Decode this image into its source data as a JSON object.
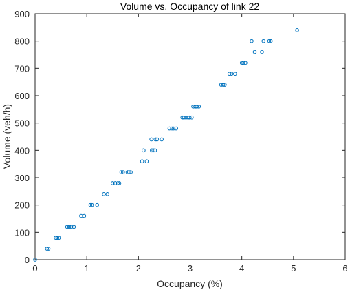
{
  "chart_data": {
    "type": "scatter",
    "title": "Volume vs. Occupancy of link 22",
    "xlabel": "Occupancy (%)",
    "ylabel": "Volume (veh/h)",
    "xlim": [
      0,
      6
    ],
    "ylim": [
      0,
      900
    ],
    "xticks": [
      0,
      1,
      2,
      3,
      4,
      5,
      6
    ],
    "yticks": [
      0,
      100,
      200,
      300,
      400,
      500,
      600,
      700,
      800,
      900
    ],
    "grid": false,
    "legend": "none",
    "marker_color": "#0072BD",
    "series": [
      {
        "points": [
          [
            0.0,
            0
          ],
          [
            0.23,
            40
          ],
          [
            0.26,
            40
          ],
          [
            0.4,
            80
          ],
          [
            0.43,
            80
          ],
          [
            0.46,
            80
          ],
          [
            0.62,
            120
          ],
          [
            0.66,
            120
          ],
          [
            0.7,
            120
          ],
          [
            0.75,
            120
          ],
          [
            0.89,
            160
          ],
          [
            0.95,
            160
          ],
          [
            1.07,
            200
          ],
          [
            1.1,
            200
          ],
          [
            1.2,
            200
          ],
          [
            1.33,
            240
          ],
          [
            1.4,
            240
          ],
          [
            1.5,
            280
          ],
          [
            1.55,
            280
          ],
          [
            1.6,
            280
          ],
          [
            1.63,
            280
          ],
          [
            1.67,
            320
          ],
          [
            1.7,
            320
          ],
          [
            1.79,
            320
          ],
          [
            1.82,
            320
          ],
          [
            1.85,
            320
          ],
          [
            2.07,
            360
          ],
          [
            2.16,
            360
          ],
          [
            2.1,
            400
          ],
          [
            2.26,
            400
          ],
          [
            2.29,
            400
          ],
          [
            2.32,
            400
          ],
          [
            2.25,
            440
          ],
          [
            2.33,
            440
          ],
          [
            2.36,
            440
          ],
          [
            2.45,
            440
          ],
          [
            2.6,
            480
          ],
          [
            2.65,
            480
          ],
          [
            2.68,
            480
          ],
          [
            2.73,
            480
          ],
          [
            2.85,
            520
          ],
          [
            2.88,
            520
          ],
          [
            2.92,
            520
          ],
          [
            2.96,
            520
          ],
          [
            2.99,
            520
          ],
          [
            3.03,
            520
          ],
          [
            3.06,
            560
          ],
          [
            3.1,
            560
          ],
          [
            3.13,
            560
          ],
          [
            3.17,
            560
          ],
          [
            3.6,
            640
          ],
          [
            3.64,
            640
          ],
          [
            3.67,
            640
          ],
          [
            3.76,
            680
          ],
          [
            3.8,
            680
          ],
          [
            3.87,
            680
          ],
          [
            4.0,
            720
          ],
          [
            4.03,
            720
          ],
          [
            4.07,
            720
          ],
          [
            4.25,
            760
          ],
          [
            4.39,
            760
          ],
          [
            4.19,
            800
          ],
          [
            4.42,
            800
          ],
          [
            4.53,
            800
          ],
          [
            4.56,
            800
          ],
          [
            5.07,
            840
          ]
        ]
      }
    ]
  }
}
